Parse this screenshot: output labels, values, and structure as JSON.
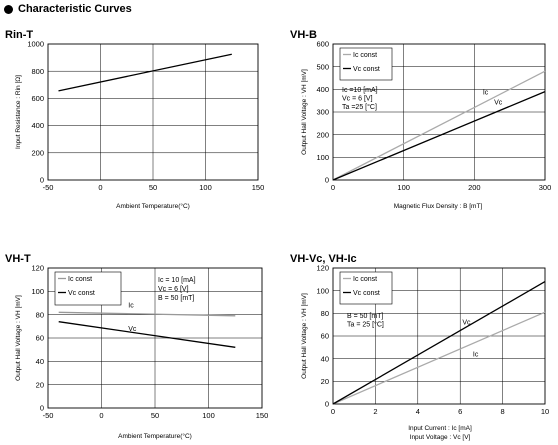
{
  "header": {
    "title": "Characteristic Curves"
  },
  "chart_data": [
    {
      "type": "line",
      "title": "Rin-T",
      "xlabel": "Ambient Temperature(°C)",
      "ylabel": "Input Resistance : Rin [Ω]",
      "xlim": [
        -50,
        150
      ],
      "ylim": [
        0,
        1000
      ],
      "xticks": [
        -50,
        0,
        50,
        100,
        150
      ],
      "yticks": [
        0,
        200,
        400,
        600,
        800,
        1000
      ],
      "grid": true,
      "series": [
        {
          "name": "",
          "color": "#000000",
          "x": [
            -40,
            125
          ],
          "y": [
            655,
            925
          ]
        }
      ],
      "legend": [],
      "annotations": [],
      "curve_labels": []
    },
    {
      "type": "line",
      "title": "VH-B",
      "xlabel": "Magnetic Flux Density : B [mT]",
      "ylabel": "Output Hall Voltage : VH [mV]",
      "xlim": [
        0,
        300
      ],
      "ylim": [
        0,
        600
      ],
      "xticks": [
        0,
        100,
        200,
        300
      ],
      "yticks": [
        0,
        100,
        200,
        300,
        400,
        500,
        600
      ],
      "grid": true,
      "series": [
        {
          "name": "Ic const",
          "color": "#aaaaaa",
          "x": [
            0,
            300
          ],
          "y": [
            0,
            480
          ]
        },
        {
          "name": "Vc const",
          "color": "#000000",
          "x": [
            0,
            300
          ],
          "y": [
            0,
            390
          ]
        }
      ],
      "legend": [
        "Ic const",
        "Vc const"
      ],
      "legend_position": "top-left",
      "annotations": [
        "Ic =10 [mA]",
        "Vc = 6 [V]",
        "Ta =25 [°C]"
      ],
      "curve_labels": [
        {
          "text": "Ic",
          "x": 212,
          "y": 378
        },
        {
          "text": "Vc",
          "x": 228,
          "y": 334
        }
      ]
    },
    {
      "type": "line",
      "title": "VH-T",
      "xlabel": "Ambient Temperature(°C)",
      "ylabel": "Output Hall Voltage : VH [mV]",
      "xlim": [
        -50,
        150
      ],
      "ylim": [
        0,
        120
      ],
      "xticks": [
        -50,
        0,
        50,
        100,
        150
      ],
      "yticks": [
        0,
        20,
        40,
        60,
        80,
        100,
        120
      ],
      "grid": true,
      "series": [
        {
          "name": "Ic const",
          "color": "#999999",
          "x": [
            -40,
            125
          ],
          "y": [
            82,
            79
          ]
        },
        {
          "name": "Vc const",
          "color": "#000000",
          "x": [
            -40,
            125
          ],
          "y": [
            74,
            52
          ]
        }
      ],
      "legend": [
        "Ic const",
        "Vc const"
      ],
      "legend_position": "top-left",
      "annotations": [
        "Ic = 10 [mA]",
        "Vc = 6 [V]",
        "B = 50 [mT]"
      ],
      "curve_labels": [
        {
          "text": "Ic",
          "x": 25,
          "y": 86
        },
        {
          "text": "Vc",
          "x": 25,
          "y": 66
        }
      ]
    },
    {
      "type": "line",
      "title": "VH-Vc, VH-Ic",
      "xlabel": "Input Current : Ic [mA]",
      "xlabel2": "Input Voltage : Vc [V]",
      "ylabel": "Output Hall Voltage : VH [mV]",
      "xlim": [
        0,
        10
      ],
      "ylim": [
        0,
        120
      ],
      "xticks": [
        0,
        2,
        4,
        6,
        8,
        10
      ],
      "yticks": [
        0,
        20,
        40,
        60,
        80,
        100,
        120
      ],
      "grid": true,
      "series": [
        {
          "name": "Ic const",
          "color": "#aaaaaa",
          "x": [
            0,
            10
          ],
          "y": [
            0,
            81
          ]
        },
        {
          "name": "Vc const",
          "color": "#000000",
          "x": [
            0,
            10
          ],
          "y": [
            0,
            108
          ]
        }
      ],
      "legend": [
        "Ic const",
        "Vc const"
      ],
      "legend_position": "top-left",
      "annotations": [
        "B = 50 [mT]",
        "Ta = 25 [°C]"
      ],
      "curve_labels": [
        {
          "text": "Vc",
          "x": 6.1,
          "y": 70
        },
        {
          "text": "Ic",
          "x": 6.6,
          "y": 42
        }
      ]
    }
  ]
}
